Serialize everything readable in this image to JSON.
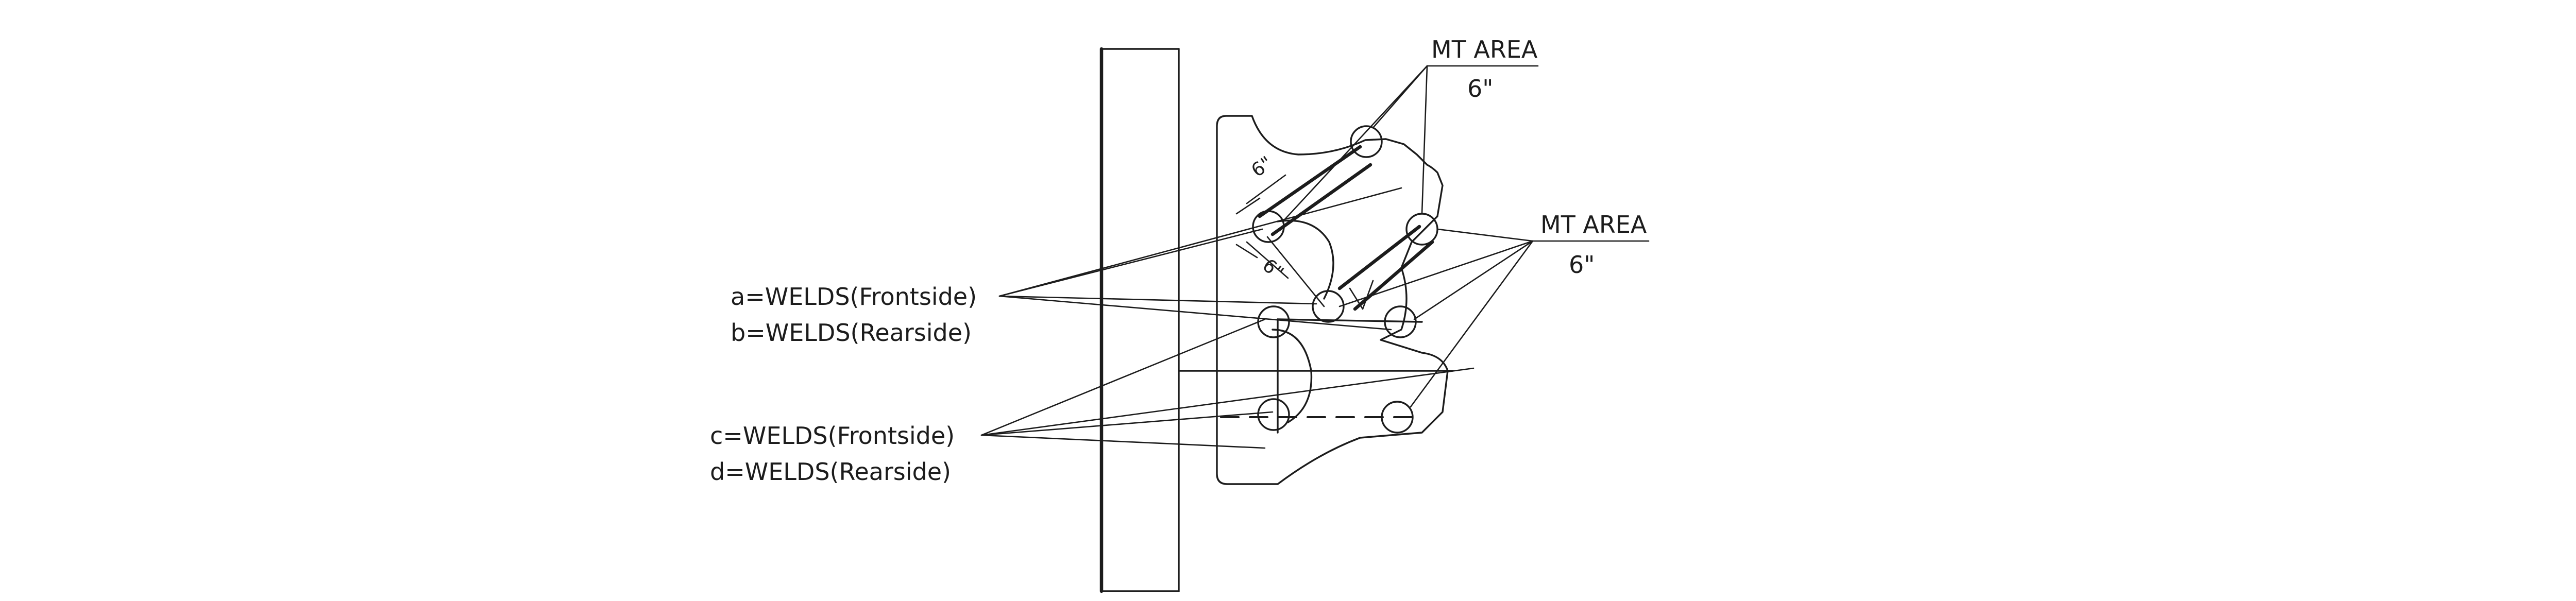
{
  "labels": {
    "mt_area_top": "MT AREA",
    "mt_area_top_value": "6\"",
    "mt_area_right": "MT AREA",
    "mt_area_right_value": "6\"",
    "weld_a": "a=WELDS(Frontside)",
    "weld_b": "b=WELDS(Rearside)",
    "weld_c": "c=WELDS(Frontside)",
    "weld_d": "d=WELDS(Rearside)",
    "dim_upper": "6\"",
    "dim_lower": "6\""
  }
}
